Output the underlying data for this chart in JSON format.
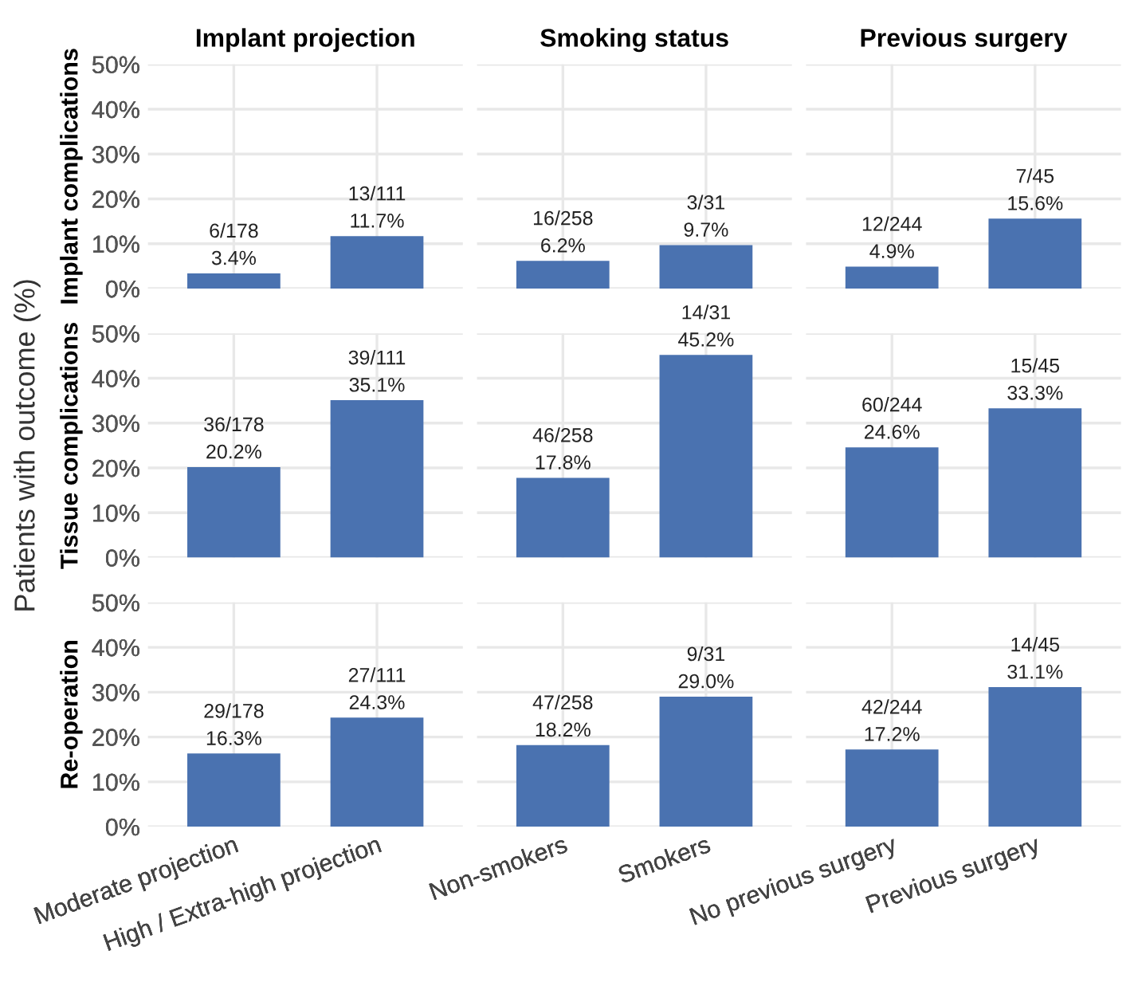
{
  "chart_data": [
    {
      "type": "bar",
      "title": "Implant projection",
      "ylabel": "Implant complications",
      "annotations": [
        "Patients with outcome (%)"
      ],
      "categories": [
        "Moderate projection",
        "High / Extra-high projection"
      ],
      "values": [
        3.4,
        11.7
      ],
      "value_labels": [
        "6/178\n3.4%",
        "13/111\n11.7%"
      ],
      "color": "#4a72b0",
      "ylim": [
        0,
        50
      ],
      "yticks": [
        {
          "value": 0,
          "label": "0%"
        },
        {
          "value": 10,
          "label": "10%"
        },
        {
          "value": 20,
          "label": "20%"
        },
        {
          "value": 30,
          "label": "30%"
        },
        {
          "value": 40,
          "label": "40%"
        },
        {
          "value": 50,
          "label": "50%"
        }
      ],
      "grid": true,
      "tick_labels": "y"
    },
    {
      "type": "bar",
      "title": "Smoking status",
      "categories": [
        "Non-smokers",
        "Smokers"
      ],
      "values": [
        6.2,
        9.7
      ],
      "value_labels": [
        "16/258\n6.2%",
        "3/31\n9.7%"
      ],
      "color": "#4a72b0",
      "ylim": [
        0,
        50
      ],
      "yticks": [
        {
          "value": 0,
          "label": "0%"
        },
        {
          "value": 10,
          "label": "10%"
        },
        {
          "value": 20,
          "label": "20%"
        },
        {
          "value": 30,
          "label": "30%"
        },
        {
          "value": 40,
          "label": "40%"
        },
        {
          "value": 50,
          "label": "50%"
        }
      ],
      "grid": true,
      "tick_labels": false
    },
    {
      "type": "bar",
      "title": "Previous surgery",
      "categories": [
        "No previous surgery",
        "Previous surgery"
      ],
      "values": [
        4.9,
        15.6
      ],
      "value_labels": [
        "12/244\n4.9%",
        "7/45\n15.6%"
      ],
      "color": "#4a72b0",
      "ylim": [
        0,
        50
      ],
      "yticks": [
        {
          "value": 0,
          "label": "0%"
        },
        {
          "value": 10,
          "label": "10%"
        },
        {
          "value": 20,
          "label": "20%"
        },
        {
          "value": 30,
          "label": "30%"
        },
        {
          "value": 40,
          "label": "40%"
        },
        {
          "value": 50,
          "label": "50%"
        }
      ],
      "grid": true,
      "tick_labels": false
    },
    {
      "type": "bar",
      "ylabel": "Tissue complications",
      "categories": [
        "Moderate projection",
        "High / Extra-high projection"
      ],
      "values": [
        20.2,
        35.1
      ],
      "value_labels": [
        "36/178\n20.2%",
        "39/111\n35.1%"
      ],
      "color": "#4a72b0",
      "ylim": [
        0,
        50
      ],
      "yticks": [
        {
          "value": 0,
          "label": "0%"
        },
        {
          "value": 10,
          "label": "10%"
        },
        {
          "value": 20,
          "label": "20%"
        },
        {
          "value": 30,
          "label": "30%"
        },
        {
          "value": 40,
          "label": "40%"
        },
        {
          "value": 50,
          "label": "50%"
        }
      ],
      "grid": true,
      "tick_labels": "y"
    },
    {
      "type": "bar",
      "categories": [
        "Non-smokers",
        "Smokers"
      ],
      "values": [
        17.8,
        45.2
      ],
      "value_labels": [
        "46/258\n17.8%",
        "14/31\n45.2%"
      ],
      "color": "#4a72b0",
      "ylim": [
        0,
        50
      ],
      "yticks": [
        {
          "value": 0,
          "label": "0%"
        },
        {
          "value": 10,
          "label": "10%"
        },
        {
          "value": 20,
          "label": "20%"
        },
        {
          "value": 30,
          "label": "30%"
        },
        {
          "value": 40,
          "label": "40%"
        },
        {
          "value": 50,
          "label": "50%"
        }
      ],
      "grid": true,
      "tick_labels": false
    },
    {
      "type": "bar",
      "categories": [
        "No previous surgery",
        "Previous surgery"
      ],
      "values": [
        24.6,
        33.3
      ],
      "value_labels": [
        "60/244\n24.6%",
        "15/45\n33.3%"
      ],
      "color": "#4a72b0",
      "ylim": [
        0,
        50
      ],
      "yticks": [
        {
          "value": 0,
          "label": "0%"
        },
        {
          "value": 10,
          "label": "10%"
        },
        {
          "value": 20,
          "label": "20%"
        },
        {
          "value": 30,
          "label": "30%"
        },
        {
          "value": 40,
          "label": "40%"
        },
        {
          "value": 50,
          "label": "50%"
        }
      ],
      "grid": true,
      "tick_labels": false
    },
    {
      "type": "bar",
      "ylabel": "Re-operation",
      "categories": [
        "Moderate projection",
        "High / Extra-high projection"
      ],
      "values": [
        16.3,
        24.3
      ],
      "value_labels": [
        "29/178\n16.3%",
        "27/111\n24.3%"
      ],
      "color": "#4a72b0",
      "ylim": [
        0,
        50
      ],
      "yticks": [
        {
          "value": 0,
          "label": "0%"
        },
        {
          "value": 10,
          "label": "10%"
        },
        {
          "value": 20,
          "label": "20%"
        },
        {
          "value": 30,
          "label": "30%"
        },
        {
          "value": 40,
          "label": "40%"
        },
        {
          "value": 50,
          "label": "50%"
        }
      ],
      "grid": true
    },
    {
      "type": "bar",
      "categories": [
        "Non-smokers",
        "Smokers"
      ],
      "values": [
        18.2,
        29.0
      ],
      "value_labels": [
        "47/258\n18.2%",
        "9/31\n29.0%"
      ],
      "color": "#4a72b0",
      "ylim": [
        0,
        50
      ],
      "yticks": [
        {
          "value": 0,
          "label": "0%"
        },
        {
          "value": 10,
          "label": "10%"
        },
        {
          "value": 20,
          "label": "20%"
        },
        {
          "value": 30,
          "label": "30%"
        },
        {
          "value": 40,
          "label": "40%"
        },
        {
          "value": 50,
          "label": "50%"
        }
      ],
      "grid": true,
      "tick_labels": "x"
    },
    {
      "type": "bar",
      "categories": [
        "No previous surgery",
        "Previous surgery"
      ],
      "values": [
        17.2,
        31.1
      ],
      "value_labels": [
        "42/244\n17.2%",
        "14/45\n31.1%"
      ],
      "color": "#4a72b0",
      "ylim": [
        0,
        50
      ],
      "yticks": [
        {
          "value": 0,
          "label": "0%"
        },
        {
          "value": 10,
          "label": "10%"
        },
        {
          "value": 20,
          "label": "20%"
        },
        {
          "value": 30,
          "label": "30%"
        },
        {
          "value": 40,
          "label": "40%"
        },
        {
          "value": 50,
          "label": "50%"
        }
      ],
      "grid": true,
      "tick_labels": "x"
    }
  ]
}
